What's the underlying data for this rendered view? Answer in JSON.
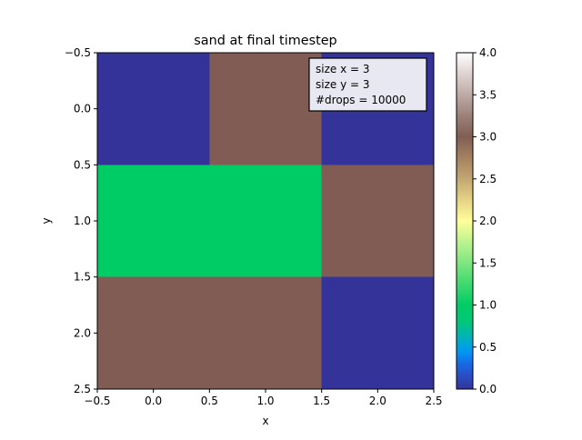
{
  "chart_data": {
    "type": "heatmap",
    "title": "sand at final timestep",
    "xlabel": "x",
    "ylabel": "y",
    "xlim": [
      -0.5,
      2.5
    ],
    "ylim": [
      2.5,
      -0.5
    ],
    "xticks": [
      "−0.5",
      "0.0",
      "0.5",
      "1.0",
      "1.5",
      "2.0",
      "2.5"
    ],
    "yticks": [
      "−0.5",
      "0.0",
      "0.5",
      "1.0",
      "1.5",
      "2.0",
      "2.5"
    ],
    "grid": false,
    "colormap": "terrain",
    "value_range": [
      0,
      4
    ],
    "colorbar_ticks": [
      "0.0",
      "0.5",
      "1.0",
      "1.5",
      "2.0",
      "2.5",
      "3.0",
      "3.5",
      "4.0"
    ],
    "matrix": [
      [
        0,
        3,
        0
      ],
      [
        1,
        1,
        3
      ],
      [
        3,
        3,
        0
      ]
    ],
    "annotation_lines": [
      "size x = 3",
      "size y = 3",
      "#drops = 10000"
    ]
  }
}
